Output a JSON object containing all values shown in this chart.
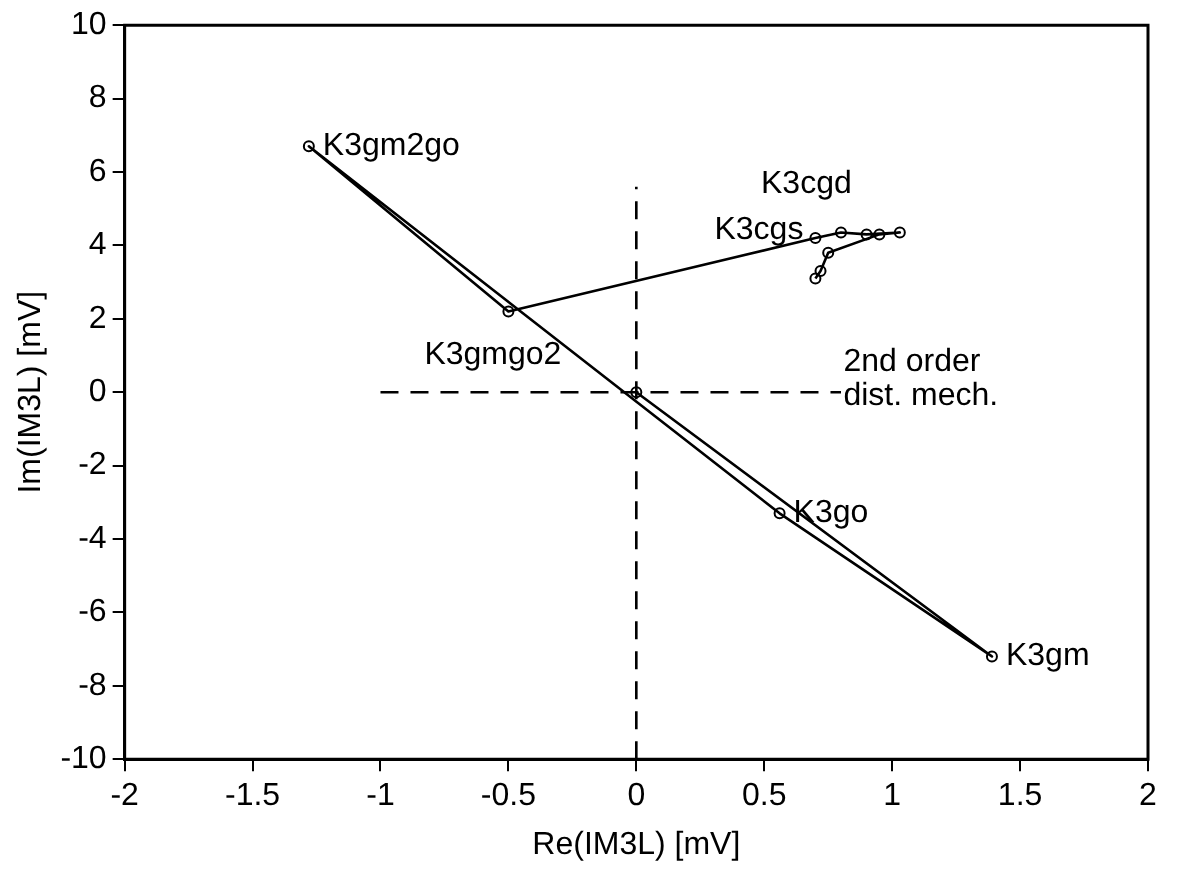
{
  "chart_data": {
    "type": "line",
    "xlabel": "Re(IM3L) [mV]",
    "ylabel": "Im(IM3L) [mV]",
    "xlim": [
      -2,
      2
    ],
    "xticks": [
      -2,
      -1.5,
      -1,
      -0.5,
      0,
      0.5,
      1,
      1.5,
      2
    ],
    "ylim": [
      -10,
      10
    ],
    "yticks": [
      -10,
      -8,
      -6,
      -4,
      -2,
      0,
      2,
      4,
      6,
      8,
      10
    ],
    "grid": false,
    "legend": false,
    "series": [
      {
        "type": "line",
        "color": "#000000",
        "marker": "circle",
        "line_style": "solid",
        "x": [
          0,
          1.39,
          0.56,
          -1.28,
          -0.5,
          0.7,
          0.8,
          0.9,
          1.03,
          0.95,
          0.75,
          0.72,
          0.7
        ],
        "values": [
          0,
          -7.2,
          -3.3,
          6.7,
          2.2,
          4.2,
          4.35,
          4.3,
          4.35,
          4.3,
          3.8,
          3.3,
          3.1
        ]
      },
      {
        "type": "line",
        "color": "#000000",
        "marker": "none",
        "line_style": "dashed",
        "x": [
          0,
          0
        ],
        "values": [
          -10,
          5.6
        ]
      },
      {
        "type": "line",
        "color": "#000000",
        "marker": "none",
        "line_style": "dashed",
        "x": [
          -1,
          0.8
        ],
        "values": [
          0,
          0
        ]
      }
    ],
    "annotations": [
      {
        "text": "K3gm2go",
        "x": -1.28,
        "y": 6.7
      },
      {
        "text": "K3gmgo2",
        "x": -0.5,
        "y": 2.2
      },
      {
        "text": "K3go",
        "x": 0.56,
        "y": -3.3
      },
      {
        "text": "K3gm",
        "x": 1.39,
        "y": -7.2
      },
      {
        "text": "K3cgs",
        "x": 0.7,
        "y": 4.2
      },
      {
        "text": "K3cgd",
        "x": 0.8,
        "y": 4.35
      },
      {
        "text": "2nd order\ndist. mech.",
        "x": 0.7,
        "y": 3.1
      }
    ]
  }
}
